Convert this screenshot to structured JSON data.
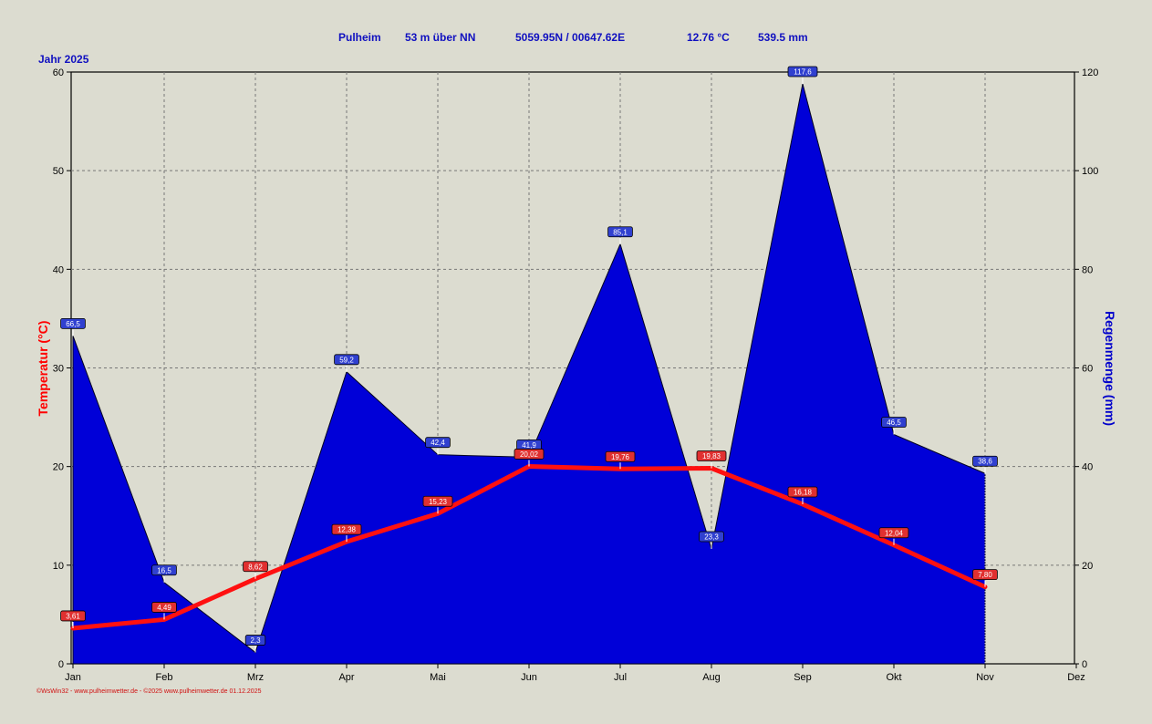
{
  "header": {
    "station": "Pulheim",
    "altitude": "53 m über NN",
    "coordinates": "5059.95N / 00647.62E",
    "avg_temperature": "12.76 °C",
    "total_rain": "539.5 mm"
  },
  "year_label": "Jahr  2025",
  "footer": "©WsWin32 - www.pulheimwetter.de - ©2025 www.pulheimwetter.de  01.12.2025",
  "colors": {
    "background": "#dcdcd0",
    "rain_fill": "#0000d8",
    "temp_line": "#ff1010",
    "axis_text": "#000000",
    "header_text": "#1010c0"
  },
  "chart_data": {
    "type": "area",
    "categories": [
      "Jan",
      "Feb",
      "Mrz",
      "Apr",
      "Mai",
      "Jun",
      "Jul",
      "Aug",
      "Sep",
      "Okt",
      "Nov",
      "Dez"
    ],
    "series": [
      {
        "axis": "left",
        "type": "line",
        "color": "#ff1010",
        "values": [
          3.61,
          4.49,
          8.62,
          12.38,
          15.23,
          20.02,
          19.76,
          19.83,
          16.18,
          12.04,
          7.8,
          null
        ],
        "labels": [
          "3,61",
          "4,49",
          "8,62",
          "12,38",
          "15,23",
          "20,02",
          "19,76",
          "19,83",
          "16,18",
          "12,04",
          "7,80",
          ""
        ]
      },
      {
        "axis": "right",
        "type": "area",
        "color": "#0000d8",
        "values": [
          66.5,
          16.5,
          2.3,
          59.2,
          42.4,
          41.9,
          85.1,
          23.3,
          117.6,
          46.5,
          38.6,
          null
        ],
        "labels": [
          "66,5",
          "16,5",
          "2,3",
          "59,2",
          "42,4",
          "41,9",
          "85,1",
          "23,3",
          "117,6",
          "46,5",
          "38,6",
          ""
        ]
      }
    ],
    "ylabel_left": "Temperatur  (°C)",
    "ylabel_right": "Regenmenge  (mm)",
    "ylim_left": [
      0,
      60
    ],
    "ylim_right": [
      0,
      120
    ],
    "yticks_left": [
      0,
      10,
      20,
      30,
      40,
      50,
      60
    ],
    "yticks_right": [
      0,
      20,
      40,
      60,
      80,
      100,
      120
    ],
    "grid": true
  }
}
